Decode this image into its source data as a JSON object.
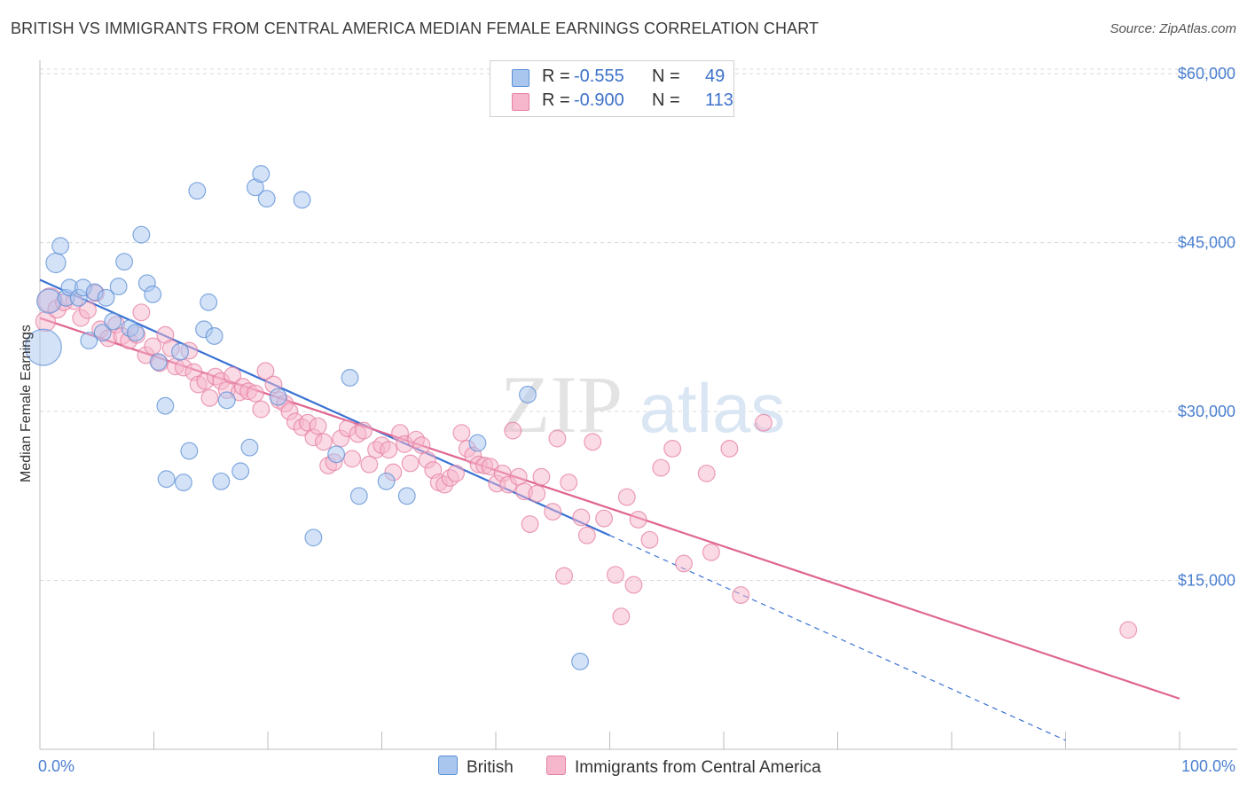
{
  "title": "BRITISH VS IMMIGRANTS FROM CENTRAL AMERICA MEDIAN FEMALE EARNINGS CORRELATION CHART",
  "source": "Source: ZipAtlas.com",
  "watermark": {
    "zip": "ZIP",
    "atlas": "atlas"
  },
  "legend": {
    "british": {
      "r_label": "R =",
      "r_value": "-0.555",
      "n_label": "N =",
      "n_value": "49"
    },
    "immigrants": {
      "r_label": "R =",
      "r_value": "-0.900",
      "n_label": "N =",
      "n_value": "113"
    }
  },
  "bottom_legend": {
    "british": "British",
    "immigrants": "Immigrants from Central America"
  },
  "colors": {
    "british_fill": "#a9c6ef",
    "british_stroke": "#5b8fd6",
    "british_line": "#3a72d4",
    "immigrants_fill": "#f6b6cb",
    "immigrants_stroke": "#e57fa2",
    "immigrants_line": "#e06590",
    "tick_text": "#4a7fd0",
    "grid": "#d8d8d8"
  },
  "chart_data": {
    "type": "scatter",
    "title": "BRITISH VS IMMIGRANTS FROM CENTRAL AMERICA MEDIAN FEMALE EARNINGS CORRELATION CHART",
    "xlabel": "",
    "ylabel": "Median Female Earnings",
    "xlim": [
      0,
      100
    ],
    "ylim": [
      0,
      63000
    ],
    "x_tick_labels": [
      "0.0%",
      "100.0%"
    ],
    "y_ticks": [
      15000,
      30000,
      45000,
      60000
    ],
    "y_tick_labels": [
      "$15,000",
      "$30,000",
      "$45,000",
      "$60,000"
    ],
    "grid": true,
    "legend_position": "top-center",
    "series": [
      {
        "name": "British",
        "r": -0.555,
        "n": 49,
        "trend": {
          "x0": 0,
          "y0": 41700,
          "x1": 50,
          "y1": 19000,
          "dashed_to_x": 90,
          "dashed_to_y": 800
        },
        "points": [
          [
            0.3,
            35700,
            2.4
          ],
          [
            0.8,
            39800,
            1.6
          ],
          [
            1.4,
            43200,
            1.3
          ],
          [
            1.8,
            44700,
            1.1
          ],
          [
            2.3,
            40100,
            1.1
          ],
          [
            2.6,
            41000,
            1.1
          ],
          [
            3.4,
            40100,
            1.1
          ],
          [
            3.8,
            41000,
            1.1
          ],
          [
            4.3,
            36300,
            1.1
          ],
          [
            4.8,
            40600,
            1.1
          ],
          [
            5.5,
            37000,
            1.1
          ],
          [
            5.8,
            40100,
            1.1
          ],
          [
            6.4,
            38000,
            1.1
          ],
          [
            6.9,
            41100,
            1.1
          ],
          [
            7.4,
            43300,
            1.1
          ],
          [
            7.9,
            37400,
            1.1
          ],
          [
            8.4,
            37000,
            1.1
          ],
          [
            8.9,
            45700,
            1.1
          ],
          [
            9.4,
            41400,
            1.1
          ],
          [
            9.9,
            40400,
            1.1
          ],
          [
            10.4,
            34400,
            1.1
          ],
          [
            11.0,
            30500,
            1.1
          ],
          [
            11.1,
            24000,
            1.1
          ],
          [
            12.3,
            35300,
            1.1
          ],
          [
            12.6,
            23700,
            1.1
          ],
          [
            13.1,
            26500,
            1.1
          ],
          [
            13.8,
            49600,
            1.1
          ],
          [
            14.4,
            37300,
            1.1
          ],
          [
            14.8,
            39700,
            1.1
          ],
          [
            15.3,
            36700,
            1.1
          ],
          [
            15.9,
            23800,
            1.1
          ],
          [
            16.4,
            31000,
            1.1
          ],
          [
            17.6,
            24700,
            1.1
          ],
          [
            18.4,
            26800,
            1.1
          ],
          [
            18.9,
            49900,
            1.1
          ],
          [
            19.4,
            51100,
            1.1
          ],
          [
            19.9,
            48900,
            1.1
          ],
          [
            20.9,
            31300,
            1.1
          ],
          [
            23.0,
            48800,
            1.1
          ],
          [
            24.0,
            18800,
            1.1
          ],
          [
            26.0,
            26200,
            1.1
          ],
          [
            27.2,
            33000,
            1.1
          ],
          [
            28.0,
            22500,
            1.1
          ],
          [
            30.4,
            23800,
            1.1
          ],
          [
            32.2,
            22500,
            1.1
          ],
          [
            38.4,
            27200,
            1.1
          ],
          [
            42.8,
            31500,
            1.1
          ],
          [
            47.4,
            7800,
            1.1
          ]
        ]
      },
      {
        "name": "Immigrants from Central America",
        "r": -0.9,
        "n": 113,
        "trend": {
          "x0": 0,
          "y0": 38300,
          "x1": 100,
          "y1": 4500
        },
        "points": [
          [
            0.5,
            38000,
            1.3
          ],
          [
            0.9,
            39900,
            1.6
          ],
          [
            1.5,
            39100,
            1.2
          ],
          [
            2.1,
            39700,
            1.1
          ],
          [
            3.0,
            39800,
            1.1
          ],
          [
            3.6,
            38300,
            1.1
          ],
          [
            4.2,
            39000,
            1.1
          ],
          [
            4.9,
            40500,
            1.1
          ],
          [
            5.3,
            37300,
            1.1
          ],
          [
            6.0,
            36500,
            1.1
          ],
          [
            6.7,
            37700,
            1.1
          ],
          [
            7.2,
            36700,
            1.1
          ],
          [
            7.8,
            36300,
            1.1
          ],
          [
            8.5,
            36800,
            1.1
          ],
          [
            8.9,
            38800,
            1.1
          ],
          [
            9.3,
            35000,
            1.1
          ],
          [
            9.9,
            35800,
            1.1
          ],
          [
            10.5,
            34300,
            1.1
          ],
          [
            11.0,
            36800,
            1.1
          ],
          [
            11.5,
            35600,
            1.1
          ],
          [
            11.9,
            34000,
            1.1
          ],
          [
            12.6,
            33900,
            1.1
          ],
          [
            13.1,
            35400,
            1.1
          ],
          [
            13.5,
            33500,
            1.1
          ],
          [
            13.9,
            32400,
            1.1
          ],
          [
            14.5,
            32700,
            1.1
          ],
          [
            14.9,
            31200,
            1.1
          ],
          [
            15.4,
            33100,
            1.1
          ],
          [
            15.9,
            32700,
            1.1
          ],
          [
            16.4,
            31900,
            1.1
          ],
          [
            16.9,
            33200,
            1.1
          ],
          [
            17.5,
            31700,
            1.1
          ],
          [
            17.8,
            32200,
            1.1
          ],
          [
            18.3,
            31800,
            1.1
          ],
          [
            18.9,
            31600,
            1.1
          ],
          [
            19.4,
            30200,
            1.1
          ],
          [
            19.8,
            33600,
            1.1
          ],
          [
            20.5,
            32400,
            1.1
          ],
          [
            21.0,
            31000,
            1.1
          ],
          [
            21.5,
            30700,
            1.1
          ],
          [
            21.9,
            30000,
            1.1
          ],
          [
            22.4,
            29100,
            1.1
          ],
          [
            23.0,
            28600,
            1.1
          ],
          [
            23.5,
            29000,
            1.1
          ],
          [
            24.0,
            27700,
            1.1
          ],
          [
            24.4,
            28700,
            1.1
          ],
          [
            24.9,
            27300,
            1.1
          ],
          [
            25.3,
            25200,
            1.1
          ],
          [
            25.8,
            25500,
            1.1
          ],
          [
            26.4,
            27600,
            1.1
          ],
          [
            27.0,
            28500,
            1.1
          ],
          [
            27.4,
            25800,
            1.1
          ],
          [
            27.9,
            28000,
            1.1
          ],
          [
            28.4,
            28300,
            1.1
          ],
          [
            28.9,
            25300,
            1.1
          ],
          [
            29.5,
            26600,
            1.1
          ],
          [
            30.0,
            27000,
            1.1
          ],
          [
            30.6,
            26600,
            1.1
          ],
          [
            31.0,
            24600,
            1.1
          ],
          [
            31.6,
            28100,
            1.1
          ],
          [
            32.0,
            27100,
            1.1
          ],
          [
            32.5,
            25400,
            1.1
          ],
          [
            33.0,
            27500,
            1.1
          ],
          [
            33.5,
            27000,
            1.1
          ],
          [
            34.0,
            25700,
            1.1
          ],
          [
            34.5,
            24800,
            1.1
          ],
          [
            35.0,
            23700,
            1.1
          ],
          [
            35.5,
            23500,
            1.1
          ],
          [
            36.0,
            24100,
            1.1
          ],
          [
            36.5,
            24500,
            1.1
          ],
          [
            37.0,
            28100,
            1.1
          ],
          [
            37.5,
            26700,
            1.1
          ],
          [
            38.0,
            26100,
            1.1
          ],
          [
            38.5,
            25300,
            1.1
          ],
          [
            39.0,
            25200,
            1.1
          ],
          [
            39.5,
            25100,
            1.1
          ],
          [
            40.1,
            23600,
            1.1
          ],
          [
            40.6,
            24500,
            1.1
          ],
          [
            41.1,
            23500,
            1.1
          ],
          [
            41.5,
            28300,
            1.1
          ],
          [
            42.0,
            24200,
            1.1
          ],
          [
            42.5,
            22900,
            1.1
          ],
          [
            43.0,
            20000,
            1.1
          ],
          [
            43.6,
            22700,
            1.1
          ],
          [
            44.0,
            24200,
            1.1
          ],
          [
            45.0,
            21100,
            1.1
          ],
          [
            45.4,
            27600,
            1.1
          ],
          [
            46.0,
            15400,
            1.1
          ],
          [
            46.4,
            23700,
            1.1
          ],
          [
            47.5,
            20600,
            1.1
          ],
          [
            48.0,
            19000,
            1.1
          ],
          [
            48.5,
            27300,
            1.1
          ],
          [
            49.5,
            20500,
            1.1
          ],
          [
            50.5,
            15500,
            1.1
          ],
          [
            51.0,
            11800,
            1.1
          ],
          [
            51.5,
            22400,
            1.1
          ],
          [
            52.1,
            14600,
            1.1
          ],
          [
            52.5,
            20400,
            1.1
          ],
          [
            53.5,
            18600,
            1.1
          ],
          [
            54.5,
            25000,
            1.1
          ],
          [
            55.5,
            26700,
            1.1
          ],
          [
            56.5,
            16500,
            1.1
          ],
          [
            58.5,
            24500,
            1.1
          ],
          [
            58.9,
            17500,
            1.1
          ],
          [
            60.5,
            26700,
            1.1
          ],
          [
            61.5,
            13700,
            1.1
          ],
          [
            63.5,
            29000,
            1.1
          ],
          [
            95.5,
            10600,
            1.1
          ]
        ]
      }
    ]
  }
}
